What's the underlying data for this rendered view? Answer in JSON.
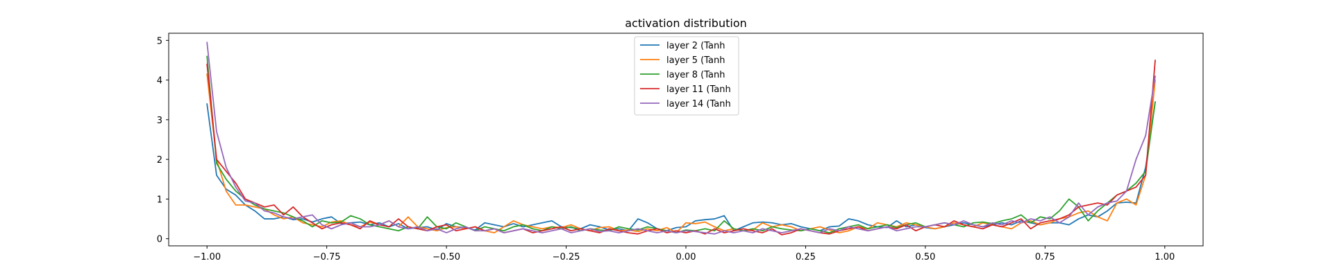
{
  "chart_data": {
    "type": "line",
    "title": "activation distribution",
    "xlabel": "",
    "ylabel": "",
    "xlim": [
      -1.08,
      1.08
    ],
    "ylim": [
      -0.18,
      5.18
    ],
    "xticks": [
      -1.0,
      -0.75,
      -0.5,
      -0.25,
      0.0,
      0.25,
      0.5,
      0.75,
      1.0
    ],
    "xtick_labels": [
      "−1.00",
      "−0.75",
      "−0.50",
      "−0.25",
      "0.00",
      "0.25",
      "0.50",
      "0.75",
      "1.00"
    ],
    "yticks": [
      0,
      1,
      2,
      3,
      4,
      5
    ],
    "ytick_labels": [
      "0",
      "1",
      "2",
      "3",
      "4",
      "5"
    ],
    "grid": false,
    "legend_position": "top-center",
    "series": [
      {
        "name": "layer 2 (Tanh",
        "color": "#1f77b4",
        "x": [
          -1.0,
          -0.98,
          -0.96,
          -0.94,
          -0.92,
          -0.9,
          -0.88,
          -0.86,
          -0.84,
          -0.82,
          -0.8,
          -0.78,
          -0.76,
          -0.74,
          -0.72,
          -0.7,
          -0.68,
          -0.66,
          -0.64,
          -0.62,
          -0.6,
          -0.58,
          -0.56,
          -0.54,
          -0.52,
          -0.5,
          -0.48,
          -0.46,
          -0.44,
          -0.42,
          -0.4,
          -0.38,
          -0.36,
          -0.34,
          -0.32,
          -0.3,
          -0.28,
          -0.26,
          -0.24,
          -0.22,
          -0.2,
          -0.18,
          -0.16,
          -0.14,
          -0.12,
          -0.1,
          -0.08,
          -0.06,
          -0.04,
          -0.02,
          0.0,
          0.02,
          0.04,
          0.06,
          0.08,
          0.1,
          0.12,
          0.14,
          0.16,
          0.18,
          0.2,
          0.22,
          0.24,
          0.26,
          0.28,
          0.3,
          0.32,
          0.34,
          0.36,
          0.38,
          0.4,
          0.42,
          0.44,
          0.46,
          0.48,
          0.5,
          0.52,
          0.54,
          0.56,
          0.58,
          0.6,
          0.62,
          0.64,
          0.66,
          0.68,
          0.7,
          0.72,
          0.74,
          0.76,
          0.78,
          0.8,
          0.82,
          0.84,
          0.86,
          0.88,
          0.9,
          0.92,
          0.94,
          0.96,
          0.98
        ],
        "y": [
          3.4,
          1.6,
          1.25,
          1.1,
          0.85,
          0.7,
          0.5,
          0.5,
          0.55,
          0.48,
          0.5,
          0.42,
          0.5,
          0.55,
          0.38,
          0.4,
          0.42,
          0.35,
          0.4,
          0.3,
          0.38,
          0.25,
          0.28,
          0.3,
          0.22,
          0.38,
          0.3,
          0.28,
          0.22,
          0.4,
          0.35,
          0.3,
          0.38,
          0.3,
          0.35,
          0.4,
          0.45,
          0.3,
          0.28,
          0.25,
          0.35,
          0.3,
          0.22,
          0.25,
          0.2,
          0.5,
          0.4,
          0.25,
          0.2,
          0.28,
          0.3,
          0.45,
          0.48,
          0.5,
          0.58,
          0.2,
          0.3,
          0.4,
          0.42,
          0.4,
          0.35,
          0.38,
          0.3,
          0.25,
          0.2,
          0.3,
          0.32,
          0.5,
          0.45,
          0.35,
          0.3,
          0.28,
          0.45,
          0.3,
          0.35,
          0.28,
          0.25,
          0.3,
          0.35,
          0.4,
          0.35,
          0.3,
          0.35,
          0.4,
          0.35,
          0.45,
          0.4,
          0.35,
          0.4,
          0.4,
          0.35,
          0.5,
          0.6,
          0.55,
          0.7,
          0.9,
          0.92,
          0.9,
          1.8,
          3.45
        ]
      },
      {
        "name": "layer 5 (Tanh",
        "color": "#ff7f0e",
        "x": [
          -1.0,
          -0.98,
          -0.96,
          -0.94,
          -0.92,
          -0.9,
          -0.88,
          -0.86,
          -0.84,
          -0.82,
          -0.8,
          -0.78,
          -0.76,
          -0.74,
          -0.72,
          -0.7,
          -0.68,
          -0.66,
          -0.64,
          -0.62,
          -0.6,
          -0.58,
          -0.56,
          -0.54,
          -0.52,
          -0.5,
          -0.48,
          -0.46,
          -0.44,
          -0.42,
          -0.4,
          -0.38,
          -0.36,
          -0.34,
          -0.32,
          -0.3,
          -0.28,
          -0.26,
          -0.24,
          -0.22,
          -0.2,
          -0.18,
          -0.16,
          -0.14,
          -0.12,
          -0.1,
          -0.08,
          -0.06,
          -0.04,
          -0.02,
          0.0,
          0.02,
          0.04,
          0.06,
          0.08,
          0.1,
          0.12,
          0.14,
          0.16,
          0.18,
          0.2,
          0.22,
          0.24,
          0.26,
          0.28,
          0.3,
          0.32,
          0.34,
          0.36,
          0.38,
          0.4,
          0.42,
          0.44,
          0.46,
          0.48,
          0.5,
          0.52,
          0.54,
          0.56,
          0.58,
          0.6,
          0.62,
          0.64,
          0.66,
          0.68,
          0.7,
          0.72,
          0.74,
          0.76,
          0.78,
          0.8,
          0.82,
          0.84,
          0.86,
          0.88,
          0.9,
          0.92,
          0.94,
          0.96,
          0.98
        ],
        "y": [
          4.15,
          2.0,
          1.2,
          0.85,
          0.85,
          0.8,
          0.75,
          0.6,
          0.5,
          0.55,
          0.4,
          0.35,
          0.3,
          0.42,
          0.45,
          0.35,
          0.3,
          0.42,
          0.35,
          0.45,
          0.3,
          0.55,
          0.3,
          0.25,
          0.2,
          0.28,
          0.3,
          0.25,
          0.3,
          0.2,
          0.15,
          0.3,
          0.45,
          0.35,
          0.3,
          0.25,
          0.3,
          0.28,
          0.35,
          0.25,
          0.2,
          0.28,
          0.3,
          0.2,
          0.22,
          0.18,
          0.25,
          0.2,
          0.28,
          0.15,
          0.4,
          0.38,
          0.42,
          0.3,
          0.2,
          0.25,
          0.2,
          0.22,
          0.4,
          0.3,
          0.35,
          0.3,
          0.2,
          0.25,
          0.3,
          0.22,
          0.15,
          0.2,
          0.3,
          0.25,
          0.4,
          0.35,
          0.3,
          0.4,
          0.35,
          0.3,
          0.25,
          0.3,
          0.4,
          0.35,
          0.3,
          0.4,
          0.35,
          0.3,
          0.25,
          0.4,
          0.45,
          0.35,
          0.4,
          0.5,
          0.55,
          0.65,
          0.7,
          0.55,
          0.45,
          0.9,
          1.0,
          0.85,
          1.6,
          4.0
        ]
      },
      {
        "name": "layer 8 (Tanh",
        "color": "#2ca02c",
        "x": [
          -1.0,
          -0.98,
          -0.96,
          -0.94,
          -0.92,
          -0.9,
          -0.88,
          -0.86,
          -0.84,
          -0.82,
          -0.8,
          -0.78,
          -0.76,
          -0.74,
          -0.72,
          -0.7,
          -0.68,
          -0.66,
          -0.64,
          -0.62,
          -0.6,
          -0.58,
          -0.56,
          -0.54,
          -0.52,
          -0.5,
          -0.48,
          -0.46,
          -0.44,
          -0.42,
          -0.4,
          -0.38,
          -0.36,
          -0.34,
          -0.32,
          -0.3,
          -0.28,
          -0.26,
          -0.24,
          -0.22,
          -0.2,
          -0.18,
          -0.16,
          -0.14,
          -0.12,
          -0.1,
          -0.08,
          -0.06,
          -0.04,
          -0.02,
          0.0,
          0.02,
          0.04,
          0.06,
          0.08,
          0.1,
          0.12,
          0.14,
          0.16,
          0.18,
          0.2,
          0.22,
          0.24,
          0.26,
          0.28,
          0.3,
          0.32,
          0.34,
          0.36,
          0.38,
          0.4,
          0.42,
          0.44,
          0.46,
          0.48,
          0.5,
          0.52,
          0.54,
          0.56,
          0.58,
          0.6,
          0.62,
          0.64,
          0.66,
          0.68,
          0.7,
          0.72,
          0.74,
          0.76,
          0.78,
          0.8,
          0.82,
          0.84,
          0.86,
          0.88,
          0.9,
          0.92,
          0.94,
          0.96,
          0.98
        ],
        "y": [
          4.6,
          1.9,
          1.5,
          1.2,
          1.0,
          0.85,
          0.75,
          0.7,
          0.65,
          0.55,
          0.45,
          0.3,
          0.45,
          0.4,
          0.42,
          0.58,
          0.5,
          0.35,
          0.3,
          0.25,
          0.2,
          0.3,
          0.25,
          0.55,
          0.3,
          0.25,
          0.4,
          0.3,
          0.2,
          0.3,
          0.25,
          0.2,
          0.3,
          0.35,
          0.25,
          0.2,
          0.3,
          0.25,
          0.3,
          0.2,
          0.25,
          0.22,
          0.2,
          0.3,
          0.25,
          0.22,
          0.3,
          0.25,
          0.2,
          0.15,
          0.22,
          0.2,
          0.25,
          0.2,
          0.45,
          0.25,
          0.2,
          0.25,
          0.2,
          0.3,
          0.25,
          0.22,
          0.2,
          0.25,
          0.2,
          0.15,
          0.25,
          0.3,
          0.35,
          0.25,
          0.3,
          0.35,
          0.28,
          0.35,
          0.4,
          0.3,
          0.35,
          0.4,
          0.35,
          0.3,
          0.4,
          0.42,
          0.38,
          0.45,
          0.5,
          0.6,
          0.4,
          0.55,
          0.5,
          0.7,
          1.0,
          0.8,
          0.45,
          0.7,
          0.9,
          1.1,
          1.2,
          1.4,
          1.7,
          3.45
        ]
      },
      {
        "name": "layer 11 (Tanh",
        "color": "#d62728",
        "x": [
          -1.0,
          -0.98,
          -0.96,
          -0.94,
          -0.92,
          -0.9,
          -0.88,
          -0.86,
          -0.84,
          -0.82,
          -0.8,
          -0.78,
          -0.76,
          -0.74,
          -0.72,
          -0.7,
          -0.68,
          -0.66,
          -0.64,
          -0.62,
          -0.6,
          -0.58,
          -0.56,
          -0.54,
          -0.52,
          -0.5,
          -0.48,
          -0.46,
          -0.44,
          -0.42,
          -0.4,
          -0.38,
          -0.36,
          -0.34,
          -0.32,
          -0.3,
          -0.28,
          -0.26,
          -0.24,
          -0.22,
          -0.2,
          -0.18,
          -0.16,
          -0.14,
          -0.12,
          -0.1,
          -0.08,
          -0.06,
          -0.04,
          -0.02,
          0.0,
          0.02,
          0.04,
          0.06,
          0.08,
          0.1,
          0.12,
          0.14,
          0.16,
          0.18,
          0.2,
          0.22,
          0.24,
          0.26,
          0.28,
          0.3,
          0.32,
          0.34,
          0.36,
          0.38,
          0.4,
          0.42,
          0.44,
          0.46,
          0.48,
          0.5,
          0.52,
          0.54,
          0.56,
          0.58,
          0.6,
          0.62,
          0.64,
          0.66,
          0.68,
          0.7,
          0.72,
          0.74,
          0.76,
          0.78,
          0.8,
          0.82,
          0.84,
          0.86,
          0.88,
          0.9,
          0.92,
          0.94,
          0.96,
          0.98
        ],
        "y": [
          4.4,
          2.0,
          1.7,
          1.4,
          1.0,
          0.9,
          0.8,
          0.85,
          0.6,
          0.8,
          0.55,
          0.4,
          0.25,
          0.35,
          0.4,
          0.35,
          0.25,
          0.45,
          0.35,
          0.3,
          0.5,
          0.3,
          0.25,
          0.2,
          0.3,
          0.35,
          0.2,
          0.25,
          0.3,
          0.2,
          0.25,
          0.15,
          0.2,
          0.25,
          0.15,
          0.2,
          0.25,
          0.3,
          0.2,
          0.25,
          0.2,
          0.15,
          0.25,
          0.2,
          0.15,
          0.12,
          0.2,
          0.25,
          0.15,
          0.2,
          0.15,
          0.2,
          0.12,
          0.25,
          0.15,
          0.2,
          0.25,
          0.2,
          0.15,
          0.25,
          0.1,
          0.15,
          0.25,
          0.2,
          0.15,
          0.12,
          0.2,
          0.25,
          0.3,
          0.2,
          0.25,
          0.3,
          0.25,
          0.35,
          0.2,
          0.3,
          0.35,
          0.3,
          0.45,
          0.35,
          0.3,
          0.25,
          0.35,
          0.3,
          0.4,
          0.5,
          0.25,
          0.4,
          0.45,
          0.5,
          0.6,
          0.8,
          0.85,
          0.9,
          0.85,
          1.1,
          1.2,
          1.3,
          1.6,
          4.5
        ]
      },
      {
        "name": "layer 14 (Tanh",
        "color": "#9467bd",
        "x": [
          -1.0,
          -0.98,
          -0.96,
          -0.94,
          -0.92,
          -0.9,
          -0.88,
          -0.86,
          -0.84,
          -0.82,
          -0.8,
          -0.78,
          -0.76,
          -0.74,
          -0.72,
          -0.7,
          -0.68,
          -0.66,
          -0.64,
          -0.62,
          -0.6,
          -0.58,
          -0.56,
          -0.54,
          -0.52,
          -0.5,
          -0.48,
          -0.46,
          -0.44,
          -0.42,
          -0.4,
          -0.38,
          -0.36,
          -0.34,
          -0.32,
          -0.3,
          -0.28,
          -0.26,
          -0.24,
          -0.22,
          -0.2,
          -0.18,
          -0.16,
          -0.14,
          -0.12,
          -0.1,
          -0.08,
          -0.06,
          -0.04,
          -0.02,
          0.0,
          0.02,
          0.04,
          0.06,
          0.08,
          0.1,
          0.12,
          0.14,
          0.16,
          0.18,
          0.2,
          0.22,
          0.24,
          0.26,
          0.28,
          0.3,
          0.32,
          0.34,
          0.36,
          0.38,
          0.4,
          0.42,
          0.44,
          0.46,
          0.48,
          0.5,
          0.52,
          0.54,
          0.56,
          0.58,
          0.6,
          0.62,
          0.64,
          0.66,
          0.68,
          0.7,
          0.72,
          0.74,
          0.76,
          0.78,
          0.8,
          0.82,
          0.84,
          0.86,
          0.88,
          0.9,
          0.92,
          0.94,
          0.96,
          0.98
        ],
        "y": [
          4.95,
          2.7,
          1.8,
          1.3,
          0.95,
          0.9,
          0.7,
          0.65,
          0.55,
          0.5,
          0.55,
          0.6,
          0.35,
          0.25,
          0.35,
          0.4,
          0.3,
          0.3,
          0.35,
          0.45,
          0.3,
          0.25,
          0.3,
          0.2,
          0.25,
          0.15,
          0.25,
          0.3,
          0.2,
          0.2,
          0.25,
          0.15,
          0.2,
          0.25,
          0.2,
          0.15,
          0.2,
          0.25,
          0.15,
          0.2,
          0.25,
          0.18,
          0.2,
          0.15,
          0.2,
          0.25,
          0.2,
          0.15,
          0.2,
          0.15,
          0.2,
          0.18,
          0.15,
          0.12,
          0.2,
          0.15,
          0.2,
          0.15,
          0.25,
          0.2,
          0.15,
          0.2,
          0.25,
          0.2,
          0.15,
          0.25,
          0.2,
          0.3,
          0.25,
          0.2,
          0.25,
          0.3,
          0.2,
          0.25,
          0.3,
          0.3,
          0.35,
          0.4,
          0.35,
          0.45,
          0.35,
          0.3,
          0.4,
          0.35,
          0.45,
          0.4,
          0.5,
          0.45,
          0.55,
          0.4,
          0.55,
          0.9,
          0.6,
          0.8,
          0.9,
          0.95,
          1.2,
          2.0,
          2.6,
          4.1
        ]
      }
    ]
  }
}
